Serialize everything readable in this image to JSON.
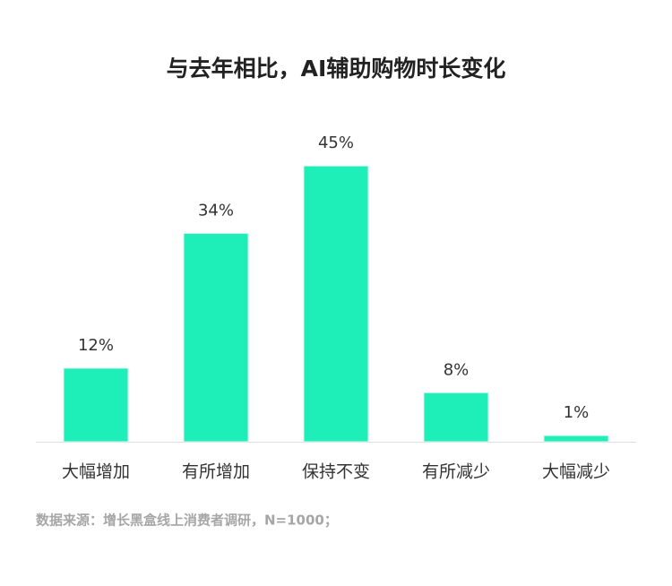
{
  "chart_data": {
    "type": "bar",
    "title": "与去年相比，AI辅助购物时长变化",
    "categories": [
      "大幅增加",
      "有所增加",
      "保持不变",
      "有所减少",
      "大幅减少"
    ],
    "values": [
      12,
      34,
      45,
      8,
      1
    ],
    "value_labels": [
      "12%",
      "34%",
      "45%",
      "8%",
      "1%"
    ],
    "color": "#1eefb8",
    "source": "数据来源：增长黑盒线上消费者调研，N=1000；"
  }
}
